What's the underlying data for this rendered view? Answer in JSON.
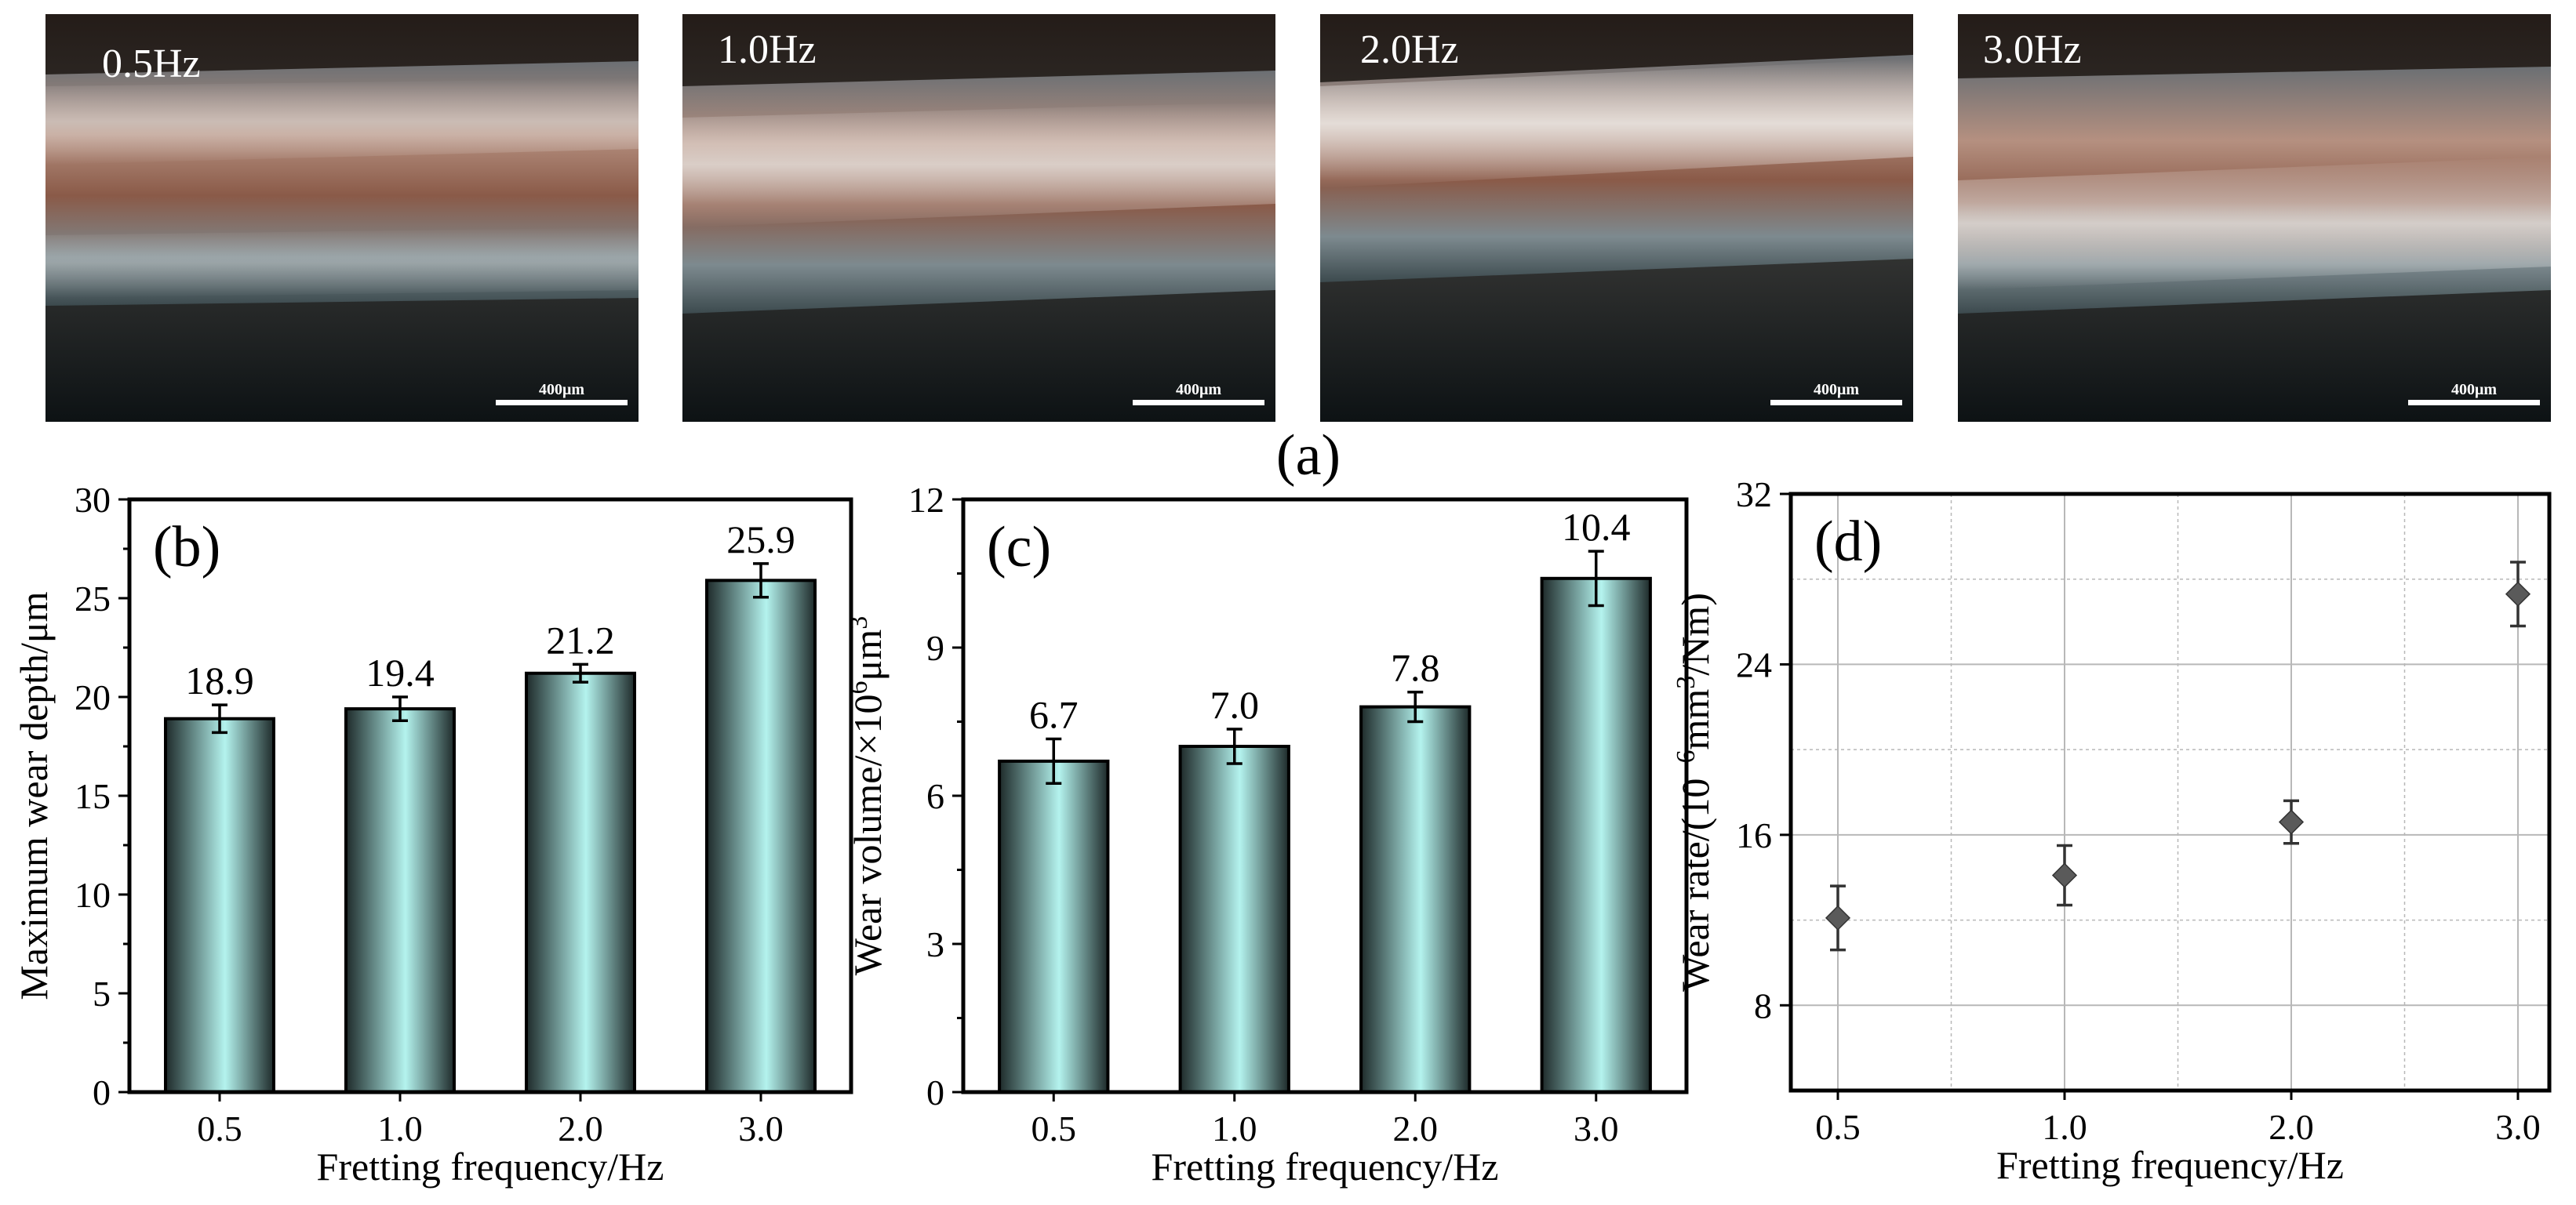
{
  "figure_label_a": "(a)",
  "micrographs": [
    {
      "label": "0.5Hz",
      "scale_bar": "400μm"
    },
    {
      "label": "1.0Hz",
      "scale_bar": "400μm"
    },
    {
      "label": "2.0Hz",
      "scale_bar": "400μm"
    },
    {
      "label": "3.0Hz",
      "scale_bar": "400μm"
    }
  ],
  "colors": {
    "bar_light": "#b4f3ee",
    "bar_dark": "#1e2a2a",
    "marker": "#5a5a5a",
    "grid": "#b8b8b8"
  },
  "chart_data": [
    {
      "panel": "(b)",
      "type": "bar",
      "categories": [
        "0.5",
        "1.0",
        "2.0",
        "3.0"
      ],
      "values": [
        18.9,
        19.4,
        21.2,
        25.9
      ],
      "errors": [
        0.7,
        0.6,
        0.45,
        0.85
      ],
      "data_labels": [
        "18.9",
        "19.4",
        "21.2",
        "25.9"
      ],
      "xlabel": "Fretting frequency/Hz",
      "ylabel": "Maximum wear depth/μm",
      "ylim": [
        0,
        30
      ],
      "yticks": [
        "0",
        "5",
        "10",
        "15",
        "20",
        "25",
        "30"
      ],
      "grid": false
    },
    {
      "panel": "(c)",
      "type": "bar",
      "categories": [
        "0.5",
        "1.0",
        "2.0",
        "3.0"
      ],
      "values": [
        6.7,
        7.0,
        7.8,
        10.4
      ],
      "errors": [
        0.45,
        0.35,
        0.3,
        0.55
      ],
      "data_labels": [
        "6.7",
        "7.0",
        "7.8",
        "10.4"
      ],
      "xlabel": "Fretting frequency/Hz",
      "ylabel_main": "Wear volume/×10",
      "ylabel_sup": "6",
      "ylabel_tail": "μm",
      "ylabel_sup2": "3",
      "ylim": [
        0,
        12
      ],
      "yticks": [
        "0",
        "3",
        "6",
        "9",
        "12"
      ],
      "grid": false
    },
    {
      "panel": "(d)",
      "type": "scatter",
      "categories": [
        "0.5",
        "1.0",
        "2.0",
        "3.0"
      ],
      "values": [
        12.1,
        14.1,
        16.6,
        27.3
      ],
      "errors": [
        1.5,
        1.4,
        1.0,
        1.5
      ],
      "xlabel": "Fretting frequency/Hz",
      "ylabel_main": "Wear rate/(10",
      "ylabel_sup": "−6",
      "ylabel_tail": "mm",
      "ylabel_sup2": "3",
      "ylabel_end": "/Nm)",
      "ylim": [
        4,
        32
      ],
      "yticks": [
        "8",
        "16",
        "24",
        "32"
      ],
      "grid": true
    }
  ]
}
